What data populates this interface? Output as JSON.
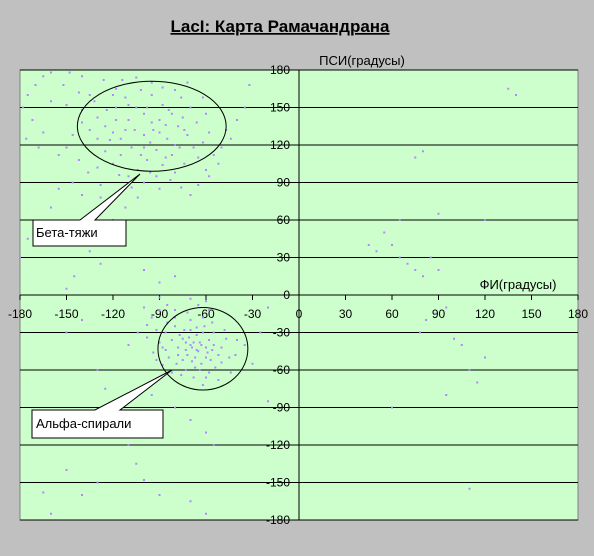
{
  "chart_data": {
    "type": "scatter",
    "title": "LacI: Карта Рамачандрана",
    "xlabel": "ФИ(градусы)",
    "ylabel": "ПСИ(градусы)",
    "xlim": [
      -180,
      180
    ],
    "ylim": [
      -180,
      180
    ],
    "x_ticks": [
      -180,
      -150,
      -120,
      -90,
      -60,
      -30,
      0,
      30,
      60,
      90,
      120,
      150,
      180
    ],
    "y_ticks": [
      180,
      150,
      120,
      90,
      60,
      30,
      0,
      -30,
      -60,
      -90,
      -120,
      -150,
      -180
    ],
    "grid": "horizontal",
    "colors": {
      "plot_bg": "#ccffcc",
      "marker": "#b088ff",
      "page_bg": "#c0c0c0"
    },
    "annotations": [
      {
        "label": "Бета-тяжи",
        "ellipse_center": [
          -95,
          135
        ],
        "ellipse_radius": [
          48,
          36
        ]
      },
      {
        "label": "Альфа-спирали",
        "ellipse_center": [
          -62,
          -43
        ],
        "ellipse_radius": [
          29,
          33
        ]
      }
    ],
    "series": [
      {
        "points": [
          [
            -160,
            155
          ],
          [
            -150,
            152
          ],
          [
            -140,
            148
          ],
          [
            -130,
            142
          ],
          [
            -125,
            135
          ],
          [
            -120,
            130
          ],
          [
            -115,
            125
          ],
          [
            -110,
            140
          ],
          [
            -105,
            150
          ],
          [
            -100,
            145
          ],
          [
            -95,
            138
          ],
          [
            -90,
            130
          ],
          [
            -85,
            125
          ],
          [
            -80,
            120
          ],
          [
            -78,
            135
          ],
          [
            -82,
            145
          ],
          [
            -88,
            152
          ],
          [
            -95,
            160
          ],
          [
            -100,
            128
          ],
          [
            -108,
            118
          ],
          [
            -115,
            112
          ],
          [
            -120,
            105
          ],
          [
            -125,
            115
          ],
          [
            -130,
            125
          ],
          [
            -135,
            132
          ],
          [
            -140,
            138
          ],
          [
            -112,
            158
          ],
          [
            -118,
            165
          ],
          [
            -70,
            150
          ],
          [
            -75,
            142
          ],
          [
            -72,
            128
          ],
          [
            -68,
            118
          ],
          [
            -65,
            110
          ],
          [
            -74,
            105
          ],
          [
            -80,
            98
          ],
          [
            -86,
            110
          ],
          [
            -92,
            116
          ],
          [
            -98,
            108
          ],
          [
            -104,
            100
          ],
          [
            -110,
            95
          ],
          [
            -100,
            118
          ],
          [
            -96,
            122
          ],
          [
            -90,
            140
          ],
          [
            -84,
            148
          ],
          [
            -76,
            158
          ],
          [
            -60,
            145
          ],
          [
            -58,
            130
          ],
          [
            -62,
            122
          ],
          [
            -124,
            148
          ],
          [
            -132,
            155
          ],
          [
            -146,
            128
          ],
          [
            -150,
            118
          ],
          [
            -155,
            112
          ],
          [
            -128,
            88
          ],
          [
            -116,
            82
          ],
          [
            -104,
            78
          ],
          [
            -136,
            98
          ],
          [
            -142,
            108
          ],
          [
            -100,
            90
          ],
          [
            -92,
            95
          ],
          [
            -83,
            92
          ],
          [
            -76,
            86
          ],
          [
            -70,
            80
          ],
          [
            -65,
            88
          ],
          [
            -60,
            100
          ],
          [
            -55,
            112
          ],
          [
            -50,
            118
          ],
          [
            -47,
            132
          ],
          [
            -120,
            160
          ],
          [
            -114,
            172
          ],
          [
            -105,
            174
          ],
          [
            -95,
            170
          ],
          [
            -88,
            166
          ],
          [
            -80,
            164
          ],
          [
            -72,
            170
          ],
          [
            -140,
            175
          ],
          [
            -148,
            178
          ],
          [
            -160,
            178
          ],
          [
            -170,
            168
          ],
          [
            -175,
            160
          ],
          [
            -178,
            150
          ],
          [
            -172,
            140
          ],
          [
            -165,
            130
          ],
          [
            -168,
            118
          ],
          [
            -176,
            125
          ],
          [
            -135,
            160
          ],
          [
            -126,
            172
          ],
          [
            -98,
            150
          ],
          [
            -106,
            132
          ],
          [
            -118,
            140
          ],
          [
            -122,
            124
          ],
          [
            -96,
            98
          ],
          [
            -88,
            104
          ],
          [
            -82,
            112
          ],
          [
            -77,
            118
          ],
          [
            -90,
            85
          ],
          [
            -112,
            70
          ],
          [
            -120,
            60
          ],
          [
            -140,
            80
          ],
          [
            -58,
            95
          ],
          [
            -52,
            105
          ],
          [
            -44,
            125
          ],
          [
            -40,
            140
          ],
          [
            -35,
            150
          ],
          [
            -32,
            168
          ],
          [
            -165,
            175
          ],
          [
            -152,
            168
          ],
          [
            -142,
            162
          ],
          [
            -118,
            150
          ],
          [
            -112,
            132
          ],
          [
            -102,
            112
          ],
          [
            -94,
            132
          ],
          [
            -86,
            136
          ],
          [
            -74,
            132
          ],
          [
            -66,
            138
          ],
          [
            -62,
            158
          ],
          [
            -110,
            152
          ],
          [
            -102,
            164
          ],
          [
            -116,
            96
          ],
          [
            -130,
            102
          ],
          [
            -108,
            86
          ],
          [
            -128,
            78
          ],
          [
            -146,
            90
          ],
          [
            -75,
            -35
          ],
          [
            -70,
            -40
          ],
          [
            -65,
            -45
          ],
          [
            -60,
            -42
          ],
          [
            -68,
            -38
          ],
          [
            -72,
            -48
          ],
          [
            -78,
            -42
          ],
          [
            -82,
            -36
          ],
          [
            -62,
            -30
          ],
          [
            -58,
            -36
          ],
          [
            -55,
            -40
          ],
          [
            -52,
            -48
          ],
          [
            -57,
            -52
          ],
          [
            -63,
            -55
          ],
          [
            -69,
            -53
          ],
          [
            -74,
            -28
          ],
          [
            -80,
            -25
          ],
          [
            -86,
            -30
          ],
          [
            -88,
            -42
          ],
          [
            -84,
            -50
          ],
          [
            -66,
            -32
          ],
          [
            -61,
            -25
          ],
          [
            -70,
            -20
          ],
          [
            -64,
            -60
          ],
          [
            -54,
            -58
          ],
          [
            -50,
            -42
          ],
          [
            -47,
            -35
          ],
          [
            -45,
            -50
          ],
          [
            -90,
            -38
          ],
          [
            -92,
            -28
          ],
          [
            -79,
            -55
          ],
          [
            -73,
            -60
          ],
          [
            -76,
            -64
          ],
          [
            -68,
            -66
          ],
          [
            -58,
            -62
          ],
          [
            -48,
            -28
          ],
          [
            -56,
            -22
          ],
          [
            -62,
            -18
          ],
          [
            -66,
            -44
          ],
          [
            -71,
            -34
          ],
          [
            -64,
            -38
          ],
          [
            -59,
            -46
          ],
          [
            -67,
            -50
          ],
          [
            -73,
            -44
          ],
          [
            -77,
            -32
          ],
          [
            -85,
            -22
          ],
          [
            -80,
            -12
          ],
          [
            -72,
            -14
          ],
          [
            -65,
            -8
          ],
          [
            -58,
            -12
          ],
          [
            -95,
            -18
          ],
          [
            -100,
            -10
          ],
          [
            -62,
            -72
          ],
          [
            -52,
            -68
          ],
          [
            -44,
            -62
          ],
          [
            -41,
            -48
          ],
          [
            -40,
            -36
          ],
          [
            -82,
            -62
          ],
          [
            -88,
            -56
          ],
          [
            -94,
            -46
          ],
          [
            -98,
            -34
          ],
          [
            -85,
            -8
          ],
          [
            -90,
            -2
          ],
          [
            -70,
            -3
          ],
          [
            -60,
            -5
          ],
          [
            -70,
            -28
          ],
          [
            -75,
            -52
          ],
          [
            -55,
            -30
          ],
          [
            -66,
            -26
          ],
          [
            -60,
            -50
          ],
          [
            -69,
            -42
          ],
          [
            -63,
            -40
          ],
          [
            -78,
            -48
          ],
          [
            -73,
            -38
          ],
          [
            -56,
            -44
          ],
          [
            -50,
            -54
          ],
          [
            -86,
            -44
          ],
          [
            -92,
            -52
          ],
          [
            -60,
            -66
          ],
          [
            -67,
            -58
          ],
          [
            -80,
            -18
          ],
          [
            -90,
            -12
          ],
          [
            -98,
            -24
          ],
          [
            -104,
            -30
          ],
          [
            -110,
            -40
          ],
          [
            -180,
            30
          ],
          [
            -175,
            45
          ],
          [
            -165,
            55
          ],
          [
            -160,
            70
          ],
          [
            -155,
            85
          ],
          [
            -130,
            45
          ],
          [
            -125,
            40
          ],
          [
            -135,
            35
          ],
          [
            -128,
            25
          ],
          [
            -145,
            15
          ],
          [
            -150,
            5
          ],
          [
            -110,
            -120
          ],
          [
            -105,
            -135
          ],
          [
            -100,
            -148
          ],
          [
            -90,
            -160
          ],
          [
            -70,
            -165
          ],
          [
            -60,
            -175
          ],
          [
            -130,
            -150
          ],
          [
            -140,
            -160
          ],
          [
            -160,
            -175
          ],
          [
            -165,
            -158
          ],
          [
            -150,
            -140
          ],
          [
            -120,
            -95
          ],
          [
            -112,
            -85
          ],
          [
            -95,
            -80
          ],
          [
            -80,
            -90
          ],
          [
            -70,
            -100
          ],
          [
            -60,
            -110
          ],
          [
            -55,
            -120
          ],
          [
            -130,
            -60
          ],
          [
            -125,
            -75
          ],
          [
            -140,
            -20
          ],
          [
            -150,
            -30
          ],
          [
            -90,
            10
          ],
          [
            -80,
            15
          ],
          [
            -100,
            20
          ],
          [
            -35,
            -40
          ],
          [
            -30,
            -55
          ],
          [
            -25,
            -30
          ],
          [
            -20,
            -10
          ],
          [
            -20,
            -85
          ],
          [
            45,
            40
          ],
          [
            50,
            35
          ],
          [
            55,
            50
          ],
          [
            60,
            40
          ],
          [
            65,
            30
          ],
          [
            70,
            25
          ],
          [
            75,
            20
          ],
          [
            80,
            15
          ],
          [
            85,
            30
          ],
          [
            90,
            20
          ],
          [
            78,
            -30
          ],
          [
            82,
            -20
          ],
          [
            88,
            -15
          ],
          [
            95,
            -10
          ],
          [
            100,
            -35
          ],
          [
            105,
            -40
          ],
          [
            110,
            -60
          ],
          [
            115,
            -70
          ],
          [
            120,
            -50
          ],
          [
            95,
            -80
          ],
          [
            60,
            -90
          ],
          [
            90,
            65
          ],
          [
            120,
            60
          ],
          [
            75,
            110
          ],
          [
            80,
            115
          ],
          [
            140,
            160
          ],
          [
            135,
            165
          ],
          [
            65,
            60
          ],
          [
            110,
            -155
          ]
        ]
      }
    ]
  },
  "callouts": {
    "beta": "Бета-тяжи",
    "alpha": "Альфа-спирали"
  }
}
